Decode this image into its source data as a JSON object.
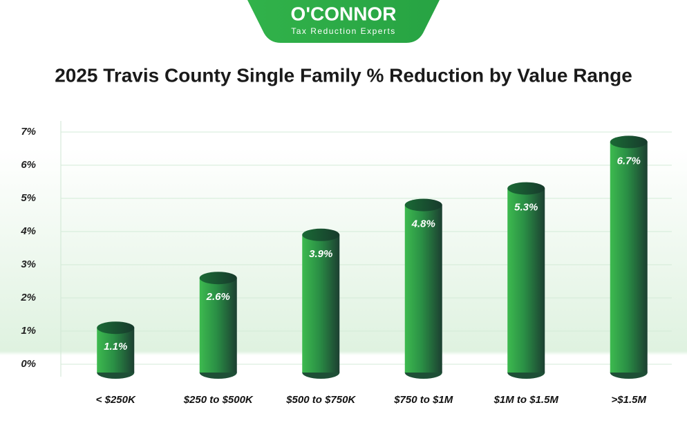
{
  "logo": {
    "name": "O'CONNOR",
    "tagline": "Tax Reduction Experts"
  },
  "chart_data": {
    "type": "bar",
    "title": "2025 Travis County Single Family % Reduction by Value Range",
    "categories": [
      "< $250K",
      "$250 to $500K",
      "$500 to $750K",
      "$750 to $1M",
      "$1M to $1.5M",
      ">$1.5M"
    ],
    "values": [
      1.1,
      2.6,
      3.9,
      4.8,
      5.3,
      6.7
    ],
    "value_labels": [
      "1.1%",
      "2.6%",
      "3.9%",
      "4.8%",
      "5.3%",
      "6.7%"
    ],
    "color": "#2e9a48",
    "ylim": [
      0,
      7
    ],
    "yticks": [
      {
        "value": 0,
        "label": "0%"
      },
      {
        "value": 1,
        "label": "1%"
      },
      {
        "value": 2,
        "label": "2%"
      },
      {
        "value": 3,
        "label": "3%"
      },
      {
        "value": 4,
        "label": "4%"
      },
      {
        "value": 5,
        "label": "5%"
      },
      {
        "value": 6,
        "label": "6%"
      },
      {
        "value": 7,
        "label": "7%"
      }
    ],
    "grid": true
  }
}
